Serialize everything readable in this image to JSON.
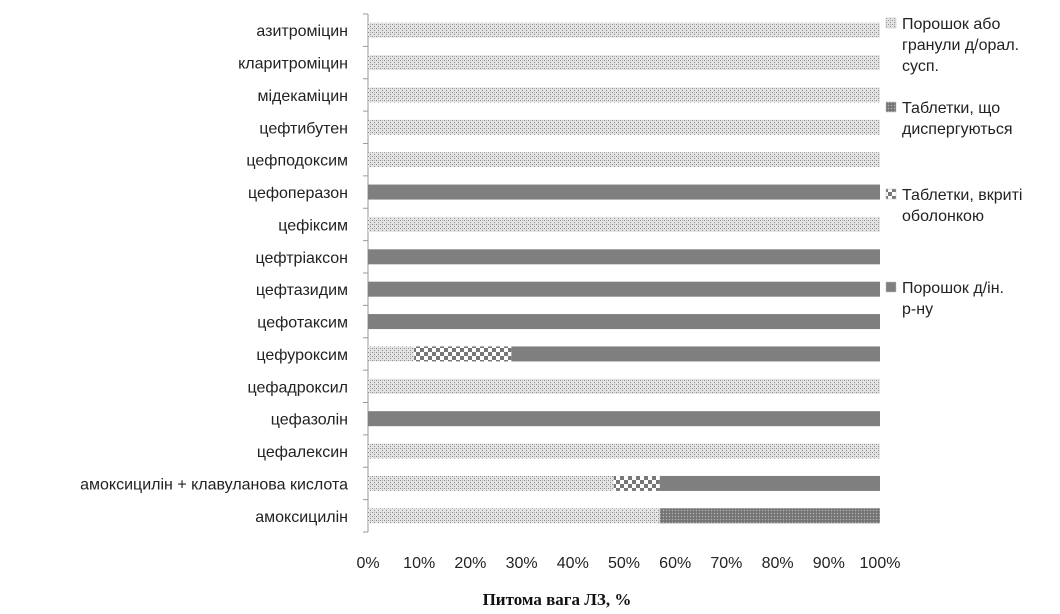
{
  "chart_data": {
    "type": "bar",
    "orientation": "horizontal",
    "stacked": "percent",
    "xlabel": "Питома вага ЛЗ, %",
    "xlim": [
      0,
      100
    ],
    "xticks": [
      "0%",
      "10%",
      "20%",
      "30%",
      "40%",
      "50%",
      "60%",
      "70%",
      "80%",
      "90%",
      "100%"
    ],
    "legend_position": "right",
    "grid": false,
    "categories": [
      "азитроміцин",
      "кларитроміцин",
      "мідекаміцин",
      "цефтибутен",
      "цефподоксим",
      "цефоперазон",
      "цефіксим",
      "цефтріаксон",
      "цефтазидим",
      "цефотаксим",
      "цефуроксим",
      "цефадроксил",
      "цефазолін",
      "цефалексин",
      "амоксицилін + клавуланова кислота",
      "амоксицилін"
    ],
    "series": [
      {
        "name": "Порошок або гранули д/орал. сусп.",
        "legend_lines": [
          "Порошок або",
          "гранули д/орал.",
          "сусп."
        ],
        "pattern": "fine-dots",
        "values": [
          100,
          100,
          100,
          100,
          100,
          0,
          100,
          0,
          0,
          0,
          9,
          100,
          0,
          100,
          48,
          57
        ]
      },
      {
        "name": "Таблетки, що диспергуються",
        "legend_lines": [
          "Таблетки, що",
          "диспергуються"
        ],
        "pattern": "dense-dots",
        "values": [
          0,
          0,
          0,
          0,
          0,
          0,
          0,
          0,
          0,
          0,
          0,
          0,
          0,
          0,
          0,
          43
        ]
      },
      {
        "name": "Таблетки, вкриті оболонкою",
        "legend_lines": [
          "Таблетки, вкриті",
          "оболонкою"
        ],
        "pattern": "checker",
        "values": [
          0,
          0,
          0,
          0,
          0,
          0,
          0,
          0,
          0,
          0,
          19,
          0,
          0,
          0,
          9,
          0
        ]
      },
      {
        "name": "Порошок д/ін. р-ну",
        "legend_lines": [
          "Порошок д/ін.",
          "р-ну"
        ],
        "pattern": "solid",
        "values": [
          0,
          0,
          0,
          0,
          0,
          100,
          0,
          100,
          100,
          100,
          72,
          0,
          100,
          0,
          43,
          0
        ]
      }
    ]
  }
}
